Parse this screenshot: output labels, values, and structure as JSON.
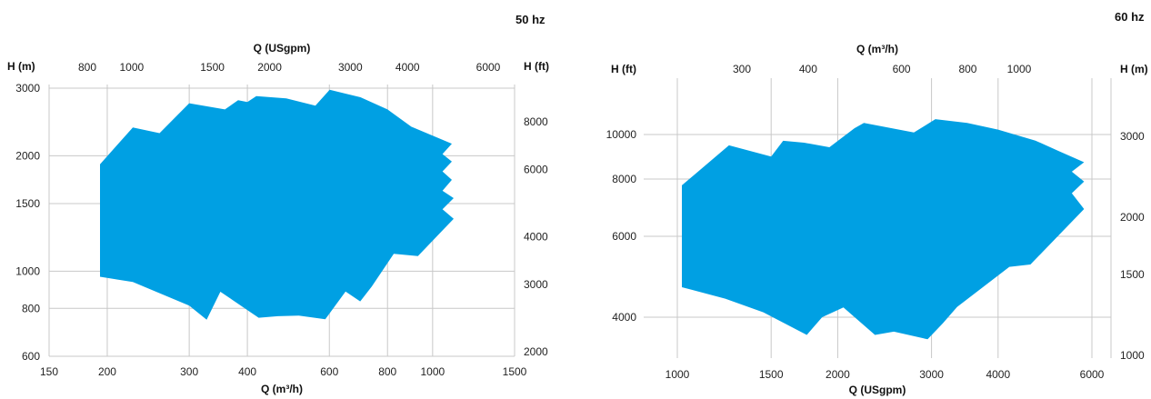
{
  "chart_data": [
    {
      "type": "area",
      "frequency_label": "50 hz",
      "x_bottom": {
        "label": "Q (m³/h)",
        "scale": "log",
        "range": [
          150,
          1500
        ],
        "ticks": [
          150,
          200,
          300,
          400,
          600,
          800,
          1000,
          1500
        ]
      },
      "x_top": {
        "label": "Q (USgpm)",
        "scale": "log",
        "ticks": [
          800,
          1000,
          1500,
          2000,
          3000,
          4000,
          6000
        ]
      },
      "y_left": {
        "label": "H (m)",
        "scale": "log",
        "range": [
          600,
          3000
        ],
        "ticks": [
          600,
          800,
          1000,
          1500,
          2000,
          3000
        ]
      },
      "y_right": {
        "label": "H (ft)",
        "scale": "log",
        "ticks": [
          2000,
          3000,
          4000,
          6000,
          8000
        ]
      },
      "grid": true,
      "fill_color": "#00a0e3",
      "grid_color": "#c8c8c8",
      "series": [
        {
          "points": [
            [
              193,
              1900
            ],
            [
              227,
              2370
            ],
            [
              259,
              2290
            ],
            [
              300,
              2740
            ],
            [
              358,
              2640
            ],
            [
              382,
              2790
            ],
            [
              400,
              2760
            ],
            [
              418,
              2860
            ],
            [
              485,
              2820
            ],
            [
              560,
              2700
            ],
            [
              601,
              2970
            ],
            [
              700,
              2840
            ],
            [
              800,
              2640
            ],
            [
              900,
              2380
            ],
            [
              1100,
              2150
            ],
            [
              1050,
              2020
            ],
            [
              1100,
              1930
            ],
            [
              1050,
              1820
            ],
            [
              1100,
              1730
            ],
            [
              1050,
              1620
            ],
            [
              1110,
              1550
            ],
            [
              1050,
              1450
            ],
            [
              1110,
              1370
            ],
            [
              930,
              1095
            ],
            [
              825,
              1110
            ],
            [
              740,
              912
            ],
            [
              699,
              834
            ],
            [
              650,
              885
            ],
            [
              588,
              749
            ],
            [
              516,
              766
            ],
            [
              465,
              763
            ],
            [
              423,
              756
            ],
            [
              350,
              884
            ],
            [
              327,
              747
            ],
            [
              300,
              813
            ],
            [
              227,
              937
            ],
            [
              193,
              967
            ]
          ]
        }
      ]
    },
    {
      "type": "area",
      "frequency_label": "60 hz",
      "x_bottom": {
        "label": "Q (USgpm)",
        "scale": "log",
        "range": [
          800,
          7000
        ],
        "ticks": [
          1000,
          1500,
          2000,
          3000,
          4000,
          6000
        ]
      },
      "x_top": {
        "label": "Q (m³/h)",
        "scale": "log",
        "ticks": [
          300,
          400,
          600,
          800,
          1000
        ]
      },
      "y_left": {
        "label": "H (ft)",
        "scale": "log",
        "range": [
          3400,
          12000
        ],
        "ticks": [
          4000,
          6000,
          8000,
          10000
        ]
      },
      "y_right": {
        "label": "H (m)",
        "scale": "log",
        "ticks": [
          1000,
          1500,
          2000,
          3000
        ]
      },
      "grid": true,
      "fill_color": "#00a0e3",
      "grid_color": "#c8c8c8",
      "series": [
        {
          "points": [
            [
              1020,
              7750
            ],
            [
              1250,
              9470
            ],
            [
              1500,
              8950
            ],
            [
              1580,
              9690
            ],
            [
              1730,
              9600
            ],
            [
              1930,
              9380
            ],
            [
              2150,
              10320
            ],
            [
              2240,
              10600
            ],
            [
              2780,
              10100
            ],
            [
              3050,
              10800
            ],
            [
              3500,
              10600
            ],
            [
              4000,
              10250
            ],
            [
              4700,
              9700
            ],
            [
              5200,
              9200
            ],
            [
              5800,
              8700
            ],
            [
              5500,
              8300
            ],
            [
              5800,
              7900
            ],
            [
              5500,
              7450
            ],
            [
              5800,
              6880
            ],
            [
              4600,
              5210
            ],
            [
              4200,
              5150
            ],
            [
              3350,
              4210
            ],
            [
              3150,
              3880
            ],
            [
              2950,
              3580
            ],
            [
              2550,
              3720
            ],
            [
              2350,
              3660
            ],
            [
              2050,
              4200
            ],
            [
              1870,
              4000
            ],
            [
              1750,
              3660
            ],
            [
              1450,
              4100
            ],
            [
              1230,
              4390
            ],
            [
              1020,
              4650
            ]
          ]
        }
      ]
    }
  ]
}
